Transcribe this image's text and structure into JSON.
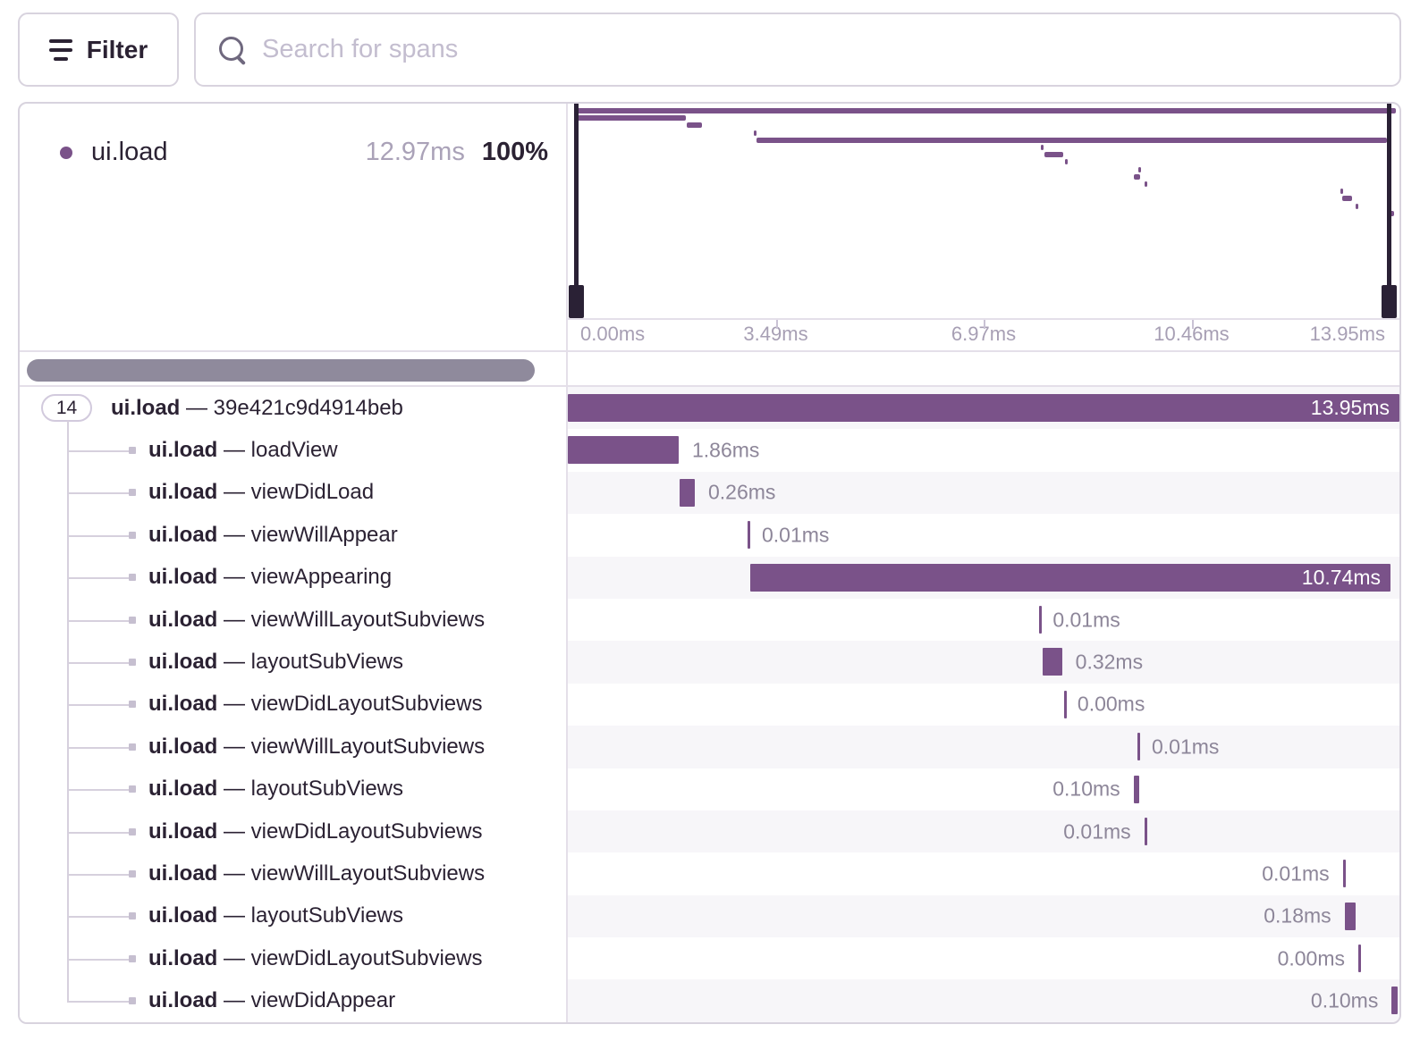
{
  "toolbar": {
    "filter_label": "Filter",
    "search_placeholder": "Search for spans",
    "search_value": ""
  },
  "legend": {
    "op": "ui.load",
    "duration": "12.97ms",
    "percent": "100%"
  },
  "axis": {
    "max_ms": 13.95,
    "tick_labels": [
      "0.00ms",
      "3.49ms",
      "6.97ms",
      "10.46ms",
      "13.95ms"
    ]
  },
  "tree": {
    "root_child_count": "14",
    "separator": "—"
  },
  "spans": [
    {
      "op": "ui.load",
      "name": "39e421c9d4914beb",
      "duration_label": "13.95ms",
      "start_ms": 0,
      "duration_ms": 13.95,
      "label_position": "inside",
      "root": true
    },
    {
      "op": "ui.load",
      "name": "loadView",
      "duration_label": "1.86ms",
      "start_ms": 0,
      "duration_ms": 1.86,
      "label_position": "right"
    },
    {
      "op": "ui.load",
      "name": "viewDidLoad",
      "duration_label": "0.26ms",
      "start_ms": 1.87,
      "duration_ms": 0.26,
      "label_position": "right"
    },
    {
      "op": "ui.load",
      "name": "viewWillAppear",
      "duration_label": "0.01ms",
      "start_ms": 3.02,
      "duration_ms": 0.01,
      "label_position": "right"
    },
    {
      "op": "ui.load",
      "name": "viewAppearing",
      "duration_label": "10.74ms",
      "start_ms": 3.06,
      "duration_ms": 10.74,
      "label_position": "inside"
    },
    {
      "op": "ui.load",
      "name": "viewWillLayoutSubviews",
      "duration_label": "0.01ms",
      "start_ms": 7.9,
      "duration_ms": 0.01,
      "label_position": "right"
    },
    {
      "op": "ui.load",
      "name": "layoutSubViews",
      "duration_label": "0.32ms",
      "start_ms": 7.97,
      "duration_ms": 0.32,
      "label_position": "right"
    },
    {
      "op": "ui.load",
      "name": "viewDidLayoutSubviews",
      "duration_label": "0.00ms",
      "start_ms": 8.32,
      "duration_ms": 0.004,
      "label_position": "right"
    },
    {
      "op": "ui.load",
      "name": "viewWillLayoutSubviews",
      "duration_label": "0.01ms",
      "start_ms": 9.56,
      "duration_ms": 0.01,
      "label_position": "right"
    },
    {
      "op": "ui.load",
      "name": "layoutSubViews",
      "duration_label": "0.10ms",
      "start_ms": 9.49,
      "duration_ms": 0.1,
      "label_position": "left"
    },
    {
      "op": "ui.load",
      "name": "viewDidLayoutSubviews",
      "duration_label": "0.01ms",
      "start_ms": 9.67,
      "duration_ms": 0.01,
      "label_position": "left"
    },
    {
      "op": "ui.load",
      "name": "viewWillLayoutSubviews",
      "duration_label": "0.01ms",
      "start_ms": 13.0,
      "duration_ms": 0.01,
      "label_position": "left"
    },
    {
      "op": "ui.load",
      "name": "layoutSubViews",
      "duration_label": "0.18ms",
      "start_ms": 13.03,
      "duration_ms": 0.18,
      "label_position": "left"
    },
    {
      "op": "ui.load",
      "name": "viewDidLayoutSubviews",
      "duration_label": "0.00ms",
      "start_ms": 13.26,
      "duration_ms": 0.004,
      "label_position": "left"
    },
    {
      "op": "ui.load",
      "name": "viewDidAppear",
      "duration_label": "0.10ms",
      "start_ms": 13.82,
      "duration_ms": 0.1,
      "label_position": "left"
    }
  ],
  "colors": {
    "span": "#7a5289",
    "handle": "#2a2135",
    "ink": "#2b2233",
    "border": "#d8d3de",
    "divider": "#e4dfe9",
    "altrow": "#f7f6f9",
    "tree": "#d6d0dd",
    "thumb": "#8f8a9c"
  }
}
